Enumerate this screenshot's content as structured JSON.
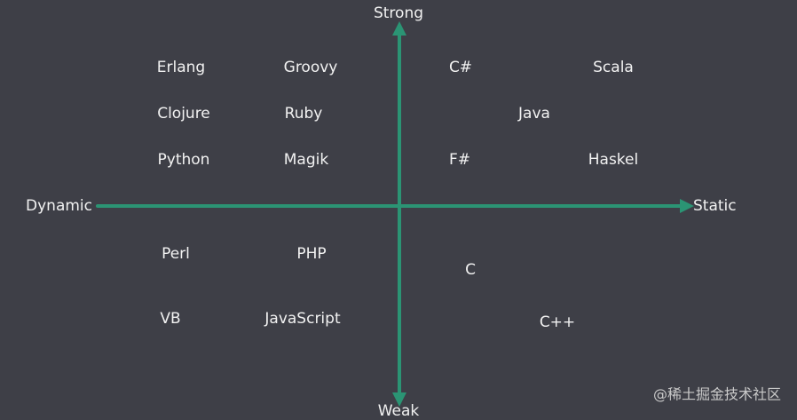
{
  "axes": {
    "top": "Strong",
    "bottom": "Weak",
    "left": "Dynamic",
    "right": "Static"
  },
  "languages": [
    "Erlang",
    "Groovy",
    "C#",
    "Scala",
    "Clojure",
    "Ruby",
    "Java",
    "Python",
    "Magik",
    "F#",
    "Haskel",
    "Perl",
    "PHP",
    "C",
    "VB",
    "JavaScript",
    "C++"
  ],
  "watermark": "@稀土掘金技术社区"
}
